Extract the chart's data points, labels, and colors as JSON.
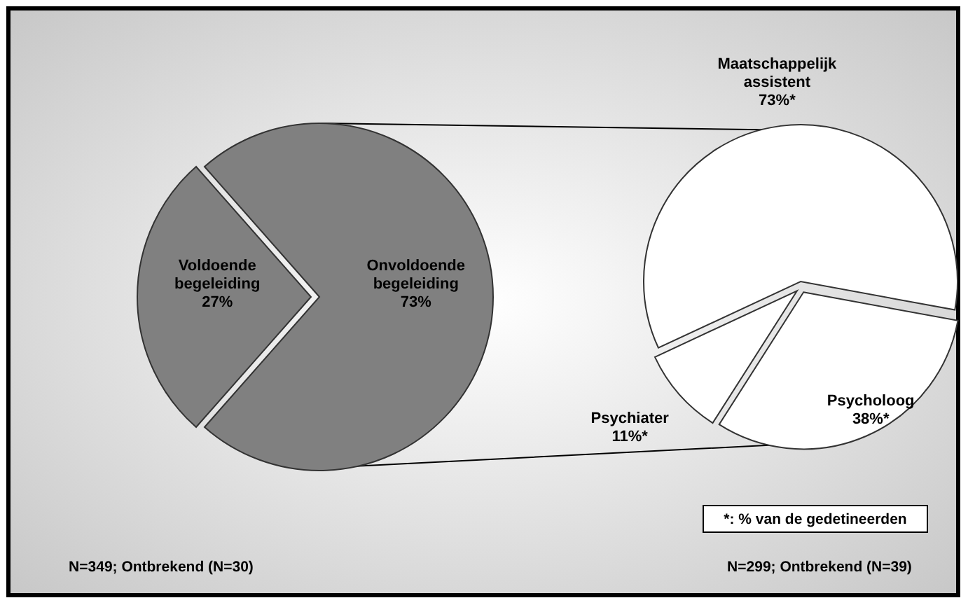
{
  "chart_data": [
    {
      "type": "pie",
      "categories": [
        "Voldoende begeleiding",
        "Onvoldoende begeleiding"
      ],
      "values": [
        27,
        73
      ],
      "colors": [
        "#808080",
        "#808080"
      ],
      "value_labels": [
        "27%",
        "73%"
      ],
      "annotations": [
        "N=349; Ontbrekend (N=30)"
      ]
    },
    {
      "type": "pie",
      "categories": [
        "Maatschappelijk assistent",
        "Psycholoog",
        "Psychiater"
      ],
      "values": [
        73,
        38,
        11
      ],
      "colors": [
        "#ffffff",
        "#ffffff",
        "#ffffff"
      ],
      "value_labels": [
        "73%*",
        "38%*",
        "11%*"
      ],
      "annotations": [
        "*: % van de gedetineerden",
        "N=299; Ontbrekend (N=39)"
      ]
    }
  ]
}
